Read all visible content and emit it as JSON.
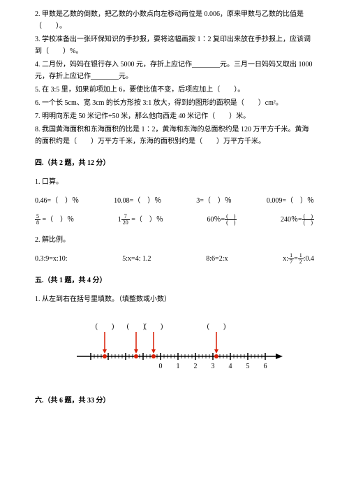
{
  "questions": {
    "q2": "2. 甲数是乙数的倒数，把乙数的小数点向左移动两位是 0.006，原来甲数与乙数的比值是（　　）。",
    "q3": "3. 学校准备出一张环保知识的手抄报，要将这幅画按 1∶2 复印出来放在手抄报上，应该调到（　　）%。",
    "q4": "4. 二月份，妈妈在银行存入 5000 元，存折上应记作________元。三月一日妈妈又取出 1000 元，存折上应记作________元。",
    "q5": "5. 在 3:5 里，如果前项加上 6，要使比值不变，后项应加上（　　）。",
    "q6": "6. 一个长 5cm、宽 3cm 的长方形按 3:1 放大，得到的图形的面积是（　　）cm²。",
    "q7": "7. 明明向东走 50 米记作+50 米，那么他向西走 40 米记作（　　）米。",
    "q8": "8. 我国黄海面积和东海面积的比是 1∶2，黄海和东海的总面积约是 120 万平方千米。黄海的面积约是（　　）万平方千米，东海的面积别约是（　　）万平方千米。"
  },
  "section4": {
    "title": "四.（共 2 题，共 12 分）",
    "item1": "1. 口算。",
    "item2": "2. 解比例。",
    "calc1": {
      "a": "0.46=（　）％",
      "b": "10.08=（　）％",
      "c": "3=（　）％",
      "d": "0.009=（　）％"
    },
    "calc2": {
      "a_n": "5",
      "a_d": "8",
      "a_t": " =（　）％",
      "b_n": "7",
      "b_d": "20",
      "b_pre": "1",
      "b_t": " =（　）％",
      "c_pre": "60％=",
      "d_pre": "240％="
    },
    "prop": {
      "a": "0.3:9=x:10:",
      "b": "5:x=4: 1.2",
      "c": "8:6=2:x",
      "d_pre": "x:",
      "d_n1": "1",
      "d_d1": "7",
      "d_mid": "=",
      "d_n2": "1",
      "d_d2": "2",
      "d_end": ":0.4"
    }
  },
  "section5": {
    "title": "五.（共 1 题，共 4 分）",
    "item1": "1. 从左到右在括号里填数。（填整数或小数）"
  },
  "section6": {
    "title": "六.（共 6 题，共 33 分）"
  },
  "numberLine": {
    "ticks": [
      "0",
      "1",
      "2",
      "3",
      "4",
      "5",
      "6"
    ],
    "brackets": [
      "(　　)",
      "(　　)",
      "(　　)",
      "(　　)"
    ],
    "axis_color": "#000000",
    "tick_color": "#000000",
    "dot_color": "#d81e06",
    "arrow_color": "#d81e06",
    "bracket_positions": [
      60,
      105,
      130,
      220
    ],
    "dot_positions": [
      60,
      105,
      130,
      220
    ],
    "tick_start": 140,
    "tick_step": 25
  }
}
